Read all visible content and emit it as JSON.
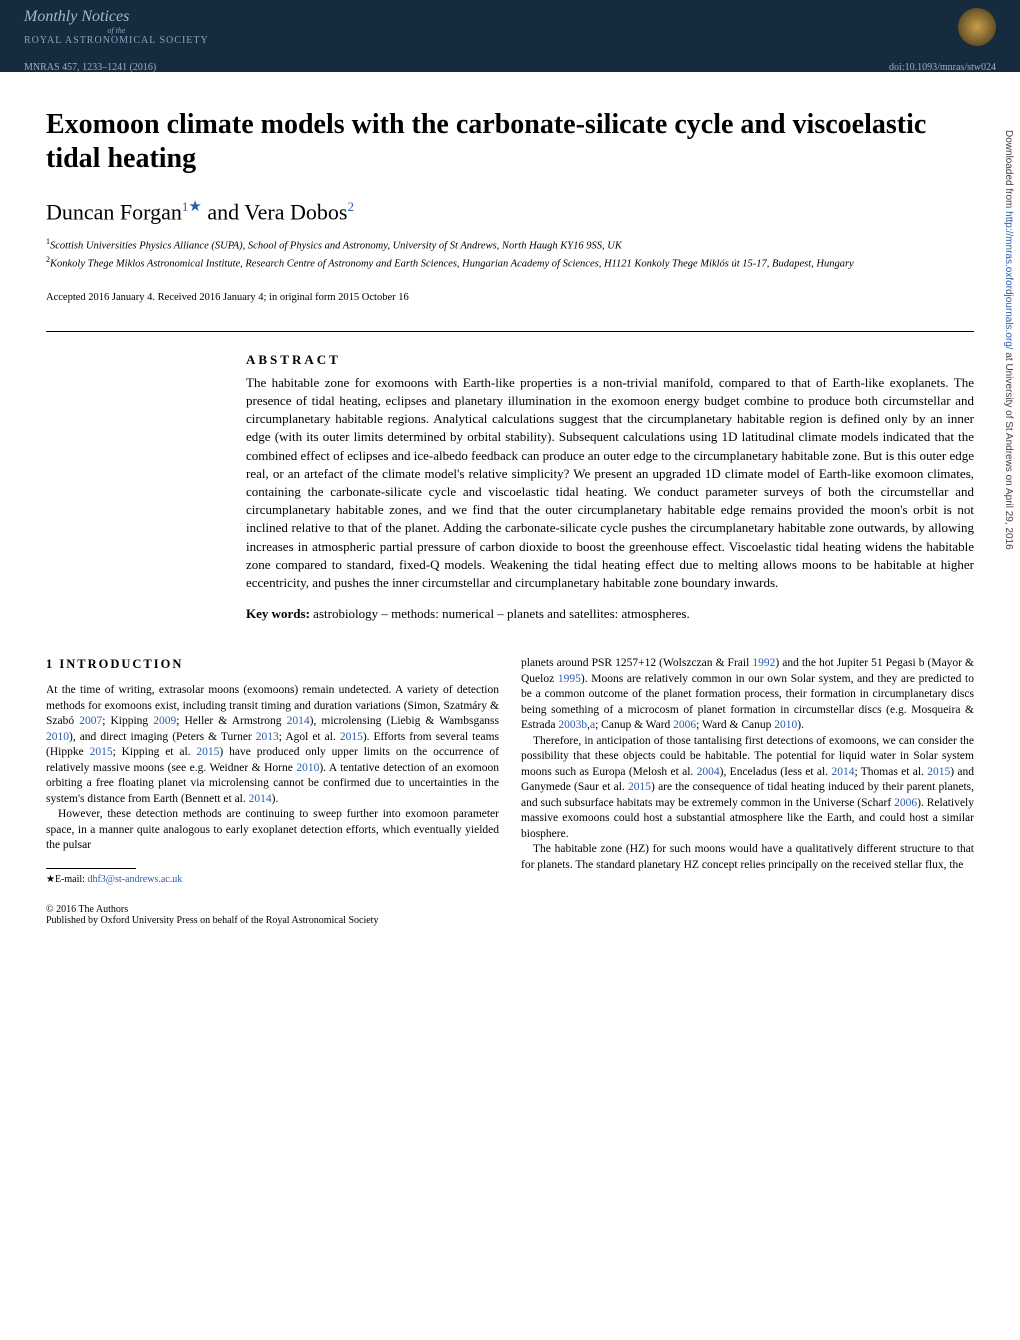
{
  "header": {
    "journal_name_line1": "Monthly Notices",
    "journal_name_ofthe": "of the",
    "journal_name_line2": "ROYAL ASTRONOMICAL SOCIETY",
    "citation": "MNRAS 457, 1233–1241 (2016)",
    "doi": "doi:10.1093/mnras/stw024"
  },
  "title": "Exomoon climate models with the carbonate-silicate cycle and viscoelastic tidal heating",
  "authors": {
    "a1_name": "Duncan Forgan",
    "a1_sup": "1",
    "a1_star": "★",
    "and": " and ",
    "a2_name": "Vera Dobos",
    "a2_sup": "2"
  },
  "affiliations": {
    "aff1_num": "1",
    "aff1": "Scottish Universities Physics Alliance (SUPA), School of Physics and Astronomy, University of St Andrews, North Haugh KY16 9SS, UK",
    "aff2_num": "2",
    "aff2": "Konkoly Thege Miklos Astronomical Institute, Research Centre of Astronomy and Earth Sciences, Hungarian Academy of Sciences, H1121 Konkoly Thege Miklós út 15-17, Budapest, Hungary"
  },
  "accepted": "Accepted 2016 January 4. Received 2016 January 4; in original form 2015 October 16",
  "abstract": {
    "heading": "ABSTRACT",
    "text": "The habitable zone for exomoons with Earth-like properties is a non-trivial manifold, compared to that of Earth-like exoplanets. The presence of tidal heating, eclipses and planetary illumination in the exomoon energy budget combine to produce both circumstellar and circumplanetary habitable regions. Analytical calculations suggest that the circumplanetary habitable region is defined only by an inner edge (with its outer limits determined by orbital stability). Subsequent calculations using 1D latitudinal climate models indicated that the combined effect of eclipses and ice-albedo feedback can produce an outer edge to the circumplanetary habitable zone. But is this outer edge real, or an artefact of the climate model's relative simplicity? We present an upgraded 1D climate model of Earth-like exomoon climates, containing the carbonate-silicate cycle and viscoelastic tidal heating. We conduct parameter surveys of both the circumstellar and circumplanetary habitable zones, and we find that the outer circumplanetary habitable edge remains provided the moon's orbit is not inclined relative to that of the planet. Adding the carbonate-silicate cycle pushes the circumplanetary habitable zone outwards, by allowing increases in atmospheric partial pressure of carbon dioxide to boost the greenhouse effect. Viscoelastic tidal heating widens the habitable zone compared to standard, fixed-Q models. Weakening the tidal heating effect due to melting allows moons to be habitable at higher eccentricity, and pushes the inner circumstellar and circumplanetary habitable zone boundary inwards."
  },
  "keywords": {
    "label": "Key words:",
    "text": " astrobiology – methods: numerical – planets and satellites: atmospheres."
  },
  "section1": {
    "heading": "1 INTRODUCTION",
    "left_p1a": "At the time of writing, extrasolar moons (exomoons) remain undetected. A variety of detection methods for exomoons exist, including transit timing and duration variations (Simon, Szatmáry & Szabó ",
    "ref1": "2007",
    "left_p1b": "; Kipping ",
    "ref2": "2009",
    "left_p1c": "; Heller & Armstrong ",
    "ref3": "2014",
    "left_p1d": "), microlensing (Liebig & Wambsganss ",
    "ref4": "2010",
    "left_p1e": "), and direct imaging (Peters & Turner ",
    "ref5": "2013",
    "left_p1f": "; Agol et al. ",
    "ref6": "2015",
    "left_p1g": "). Efforts from several teams (Hippke ",
    "ref7": "2015",
    "left_p1h": "; Kipping et al. ",
    "ref8": "2015",
    "left_p1i": ") have produced only upper limits on the occurrence of relatively massive moons (see e.g. Weidner & Horne ",
    "ref9": "2010",
    "left_p1j": "). A tentative detection of an exomoon orbiting a free floating planet via microlensing cannot be confirmed due to uncertainties in the system's distance from Earth (Bennett et al. ",
    "ref10": "2014",
    "left_p1k": ").",
    "left_p2": "However, these detection methods are continuing to sweep further into exomoon parameter space, in a manner quite analogous to early exoplanet detection efforts, which eventually yielded the pulsar",
    "right_p1a": "planets around PSR 1257+12 (Wolszczan & Frail ",
    "rref1": "1992",
    "right_p1b": ") and the hot Jupiter 51 Pegasi b (Mayor & Queloz ",
    "rref2": "1995",
    "right_p1c": "). Moons are relatively common in our own Solar system, and they are predicted to be a common outcome of the planet formation process, their formation in circumplanetary discs being something of a microcosm of planet formation in circumstellar discs (e.g. Mosqueira & Estrada ",
    "rref3": "2003b",
    "right_p1d": ",",
    "rref4": "a",
    "right_p1e": "; Canup & Ward ",
    "rref5": "2006",
    "right_p1f": "; Ward & Canup ",
    "rref6": "2010",
    "right_p1g": ").",
    "right_p2a": "Therefore, in anticipation of those tantalising first detections of exomoons, we can consider the possibility that these objects could be habitable. The potential for liquid water in Solar system moons such as Europa (Melosh et al. ",
    "rref7": "2004",
    "right_p2b": "), Enceladus (Iess et al. ",
    "rref8": "2014",
    "right_p2c": "; Thomas et al. ",
    "rref9": "2015",
    "right_p2d": ") and Ganymede (Saur et al. ",
    "rref10": "2015",
    "right_p2e": ") are the consequence of tidal heating induced by their parent planets, and such subsurface habitats may be extremely common in the Universe (Scharf ",
    "rref11": "2006",
    "right_p2f": "). Relatively massive exomoons could host a substantial atmosphere like the Earth, and could host a similar biosphere.",
    "right_p3": "The habitable zone (HZ) for such moons would have a qualitatively different structure to that for planets. The standard planetary HZ concept relies principally on the received stellar flux, the"
  },
  "footnote": {
    "star": "★",
    "label": "E-mail: ",
    "email": "dhf3@st-andrews.ac.uk"
  },
  "footer": {
    "line1": "© 2016 The Authors",
    "line2": "Published by Oxford University Press on behalf of the Royal Astronomical Society"
  },
  "sidetext": {
    "pre": "Downloaded from ",
    "link": "http://mnras.oxfordjournals.org/",
    "post": " at University of St Andrews on April 29, 2016"
  }
}
